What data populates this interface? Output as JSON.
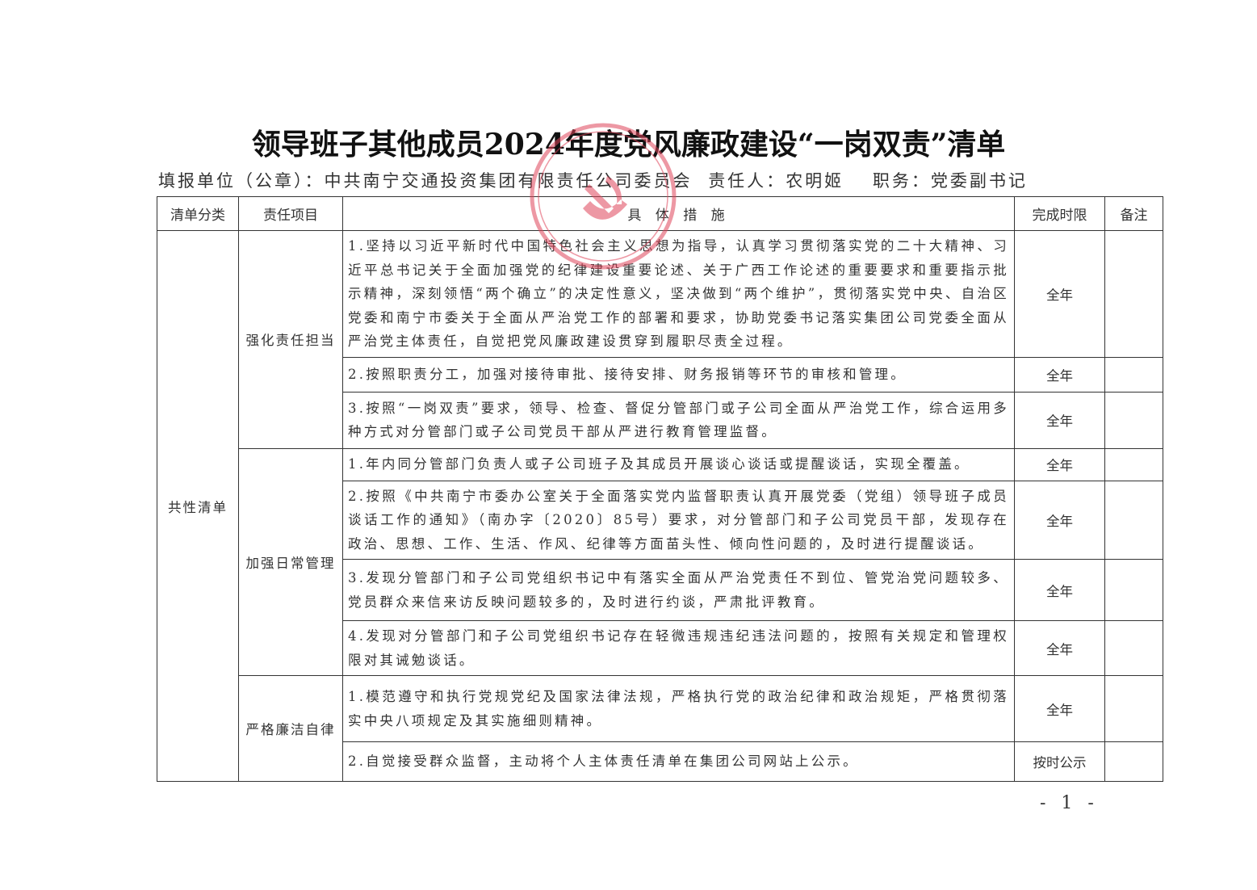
{
  "title": "领导班子其他成员2024年度党风廉政建设“一岗双责”清单",
  "header": {
    "unit_label": "填报单位（公章）：",
    "unit": "中共南宁交通投资集团有限责任公司委员会",
    "person_label": "责任人：",
    "person": "农明姬",
    "post_label": "职务：",
    "post": "党委副书记"
  },
  "table": {
    "headers": [
      "清单分类",
      "责任项目",
      "具 体 措 施",
      "完成时限",
      "备注"
    ],
    "category": "共性清单",
    "groups": [
      {
        "item": "强化责任担当",
        "rows": [
          {
            "measure": "1.坚持以习近平新时代中国特色社会主义思想为指导，认真学习贯彻落实党的二十大精神、习近平总书记关于全面加强党的纪律建设重要论述、关于广西工作论述的重要要求和重要指示批示精神，深刻领悟“两个确立”的决定性意义，坚决做到“两个维护”，贯彻落实党中央、自治区党委和南宁市委关于全面从严治党工作的部署和要求，协助党委书记落实集团公司党委全面从严治党主体责任，自觉把党风廉政建设贯穿到履职尽责全过程。",
            "deadline": "全年",
            "note": ""
          },
          {
            "measure": "2.按照职责分工，加强对接待审批、接待安排、财务报销等环节的审核和管理。",
            "deadline": "全年",
            "note": ""
          },
          {
            "measure": "3.按照“一岗双责”要求，领导、检查、督促分管部门或子公司全面从严治党工作，综合运用多种方式对分管部门或子公司党员干部从严进行教育管理监督。",
            "deadline": "全年",
            "note": ""
          }
        ]
      },
      {
        "item": "加强日常管理",
        "rows": [
          {
            "measure": "1.年内同分管部门负责人或子公司班子及其成员开展谈心谈话或提醒谈话，实现全覆盖。",
            "deadline": "全年",
            "note": ""
          },
          {
            "measure": "2.按照《中共南宁市委办公室关于全面落实党内监督职责认真开展党委（党组）领导班子成员谈话工作的通知》（南办字〔2020〕85号）要求，对分管部门和子公司党员干部，发现存在政治、思想、工作、生活、作风、纪律等方面苗头性、倾向性问题的，及时进行提醒谈话。",
            "deadline": "全年",
            "note": ""
          },
          {
            "measure": "3.发现分管部门和子公司党组织书记中有落实全面从严治党责任不到位、管党治党问题较多、党员群众来信来访反映问题较多的，及时进行约谈，严肃批评教育。",
            "deadline": "全年",
            "note": ""
          },
          {
            "measure": "4.发现对分管部门和子公司党组织书记存在轻微违规违纪违法问题的，按照有关规定和管理权限对其诫勉谈话。",
            "deadline": "全年",
            "note": ""
          }
        ]
      },
      {
        "item": "严格廉洁自律",
        "rows": [
          {
            "measure": "1.模范遵守和执行党规党纪及国家法律法规，严格执行党的政治纪律和政治规矩，严格贯彻落实中央八项规定及其实施细则精神。",
            "deadline": "全年",
            "note": ""
          },
          {
            "measure": "2.自觉接受群众监督，主动将个人主体责任清单在集团公司网站上公示。",
            "deadline": "按时公示",
            "note": ""
          }
        ]
      }
    ]
  },
  "page_number": "- 1 -",
  "stamp": {
    "text": "中共南宁交通投资集团有限责任公司委员会",
    "color": "#e0455a"
  }
}
